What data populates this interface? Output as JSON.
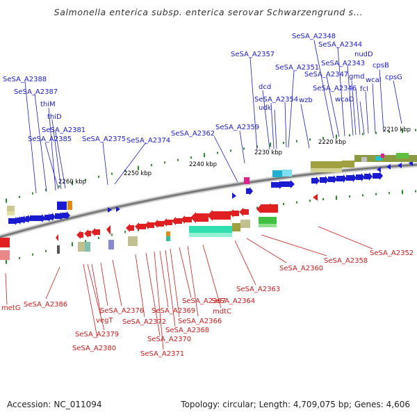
{
  "title": "Salmonella enterica subsp. enterica serovar Schwarzengrund s...",
  "accession": {
    "label": "Accession:",
    "value": "NC_011094"
  },
  "stats": {
    "topology_label": "Topology:",
    "topology": "circular",
    "length_label": "Length:",
    "length": "4,709,075 bp",
    "genes_label": "Genes:",
    "genes": "4,606"
  },
  "tick_labels": [
    "2260 kbp",
    "2250 kbp",
    "2240 kbp",
    "2230 kbp",
    "2220 kbp",
    "2210 kbp"
  ],
  "genes_top": [
    "SeSA_A2388",
    "SeSA_A2387",
    "thiM",
    "thiD",
    "SeSA_A2381",
    "SeSA_A2385",
    "SeSA_A2375",
    "SeSA_A2374",
    "SeSA_A2362",
    "SeSA_A2359",
    "SeSA_A2357",
    "dcd",
    "SeSA_A2354",
    "udk",
    "SeSA_A2351",
    "wzb",
    "SeSA_A2348",
    "SeSA_A2344",
    "nudD",
    "SeSA_A2343",
    "SeSA_A2347",
    "gmd",
    "cpsB",
    "wcaI",
    "cpsG",
    "SeSA_A2346",
    "fcl",
    "wcaD"
  ],
  "genes_bottom": [
    "metG",
    "SeSA_A2386",
    "SeSA_A2376",
    "vegT",
    "SeSA_A2379",
    "SeSA_A2380",
    "SeSA_A2372",
    "SeSA_A2369",
    "SeSA_A2367",
    "SeSA_A2370",
    "SeSA_A2371",
    "SeSA_A2368",
    "SeSA_A2366",
    "mdtC",
    "SeSA_A2364",
    "SeSA_A2363",
    "SeSA_A2360",
    "SeSA_A2358",
    "SeSA_A2352"
  ],
  "colors": {
    "forward_strand": "#1a1ad0",
    "reverse_strand": "#d01a1a",
    "backbone": "#8c8c8c",
    "tick": "#2a8a2a"
  }
}
